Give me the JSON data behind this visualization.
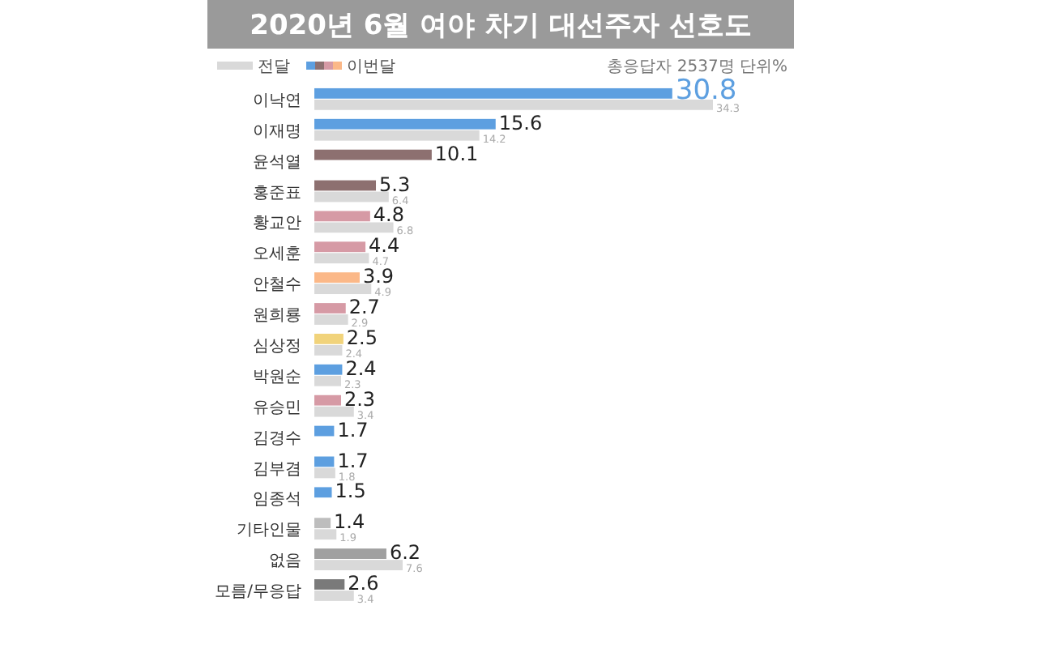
{
  "chart_data": {
    "type": "bar",
    "orientation": "horizontal",
    "title": "2020년 6월 여야 차기 대선주자 선호도",
    "annotations": [
      "총응답자 2537명 단위%"
    ],
    "categories": [
      "이낙연",
      "이재명",
      "윤석열",
      "홍준표",
      "황교안",
      "오세훈",
      "안철수",
      "원희룡",
      "심상정",
      "박원순",
      "유승민",
      "김경수",
      "김부겸",
      "임종석",
      "기타인물",
      "없음",
      "모름/무응답"
    ],
    "series": [
      {
        "name": "이번달",
        "colors": [
          "#5d9fe0",
          "#5d9fe0",
          "#8d7070",
          "#8d7070",
          "#d69aa5",
          "#d69aa5",
          "#fbb888",
          "#d69aa5",
          "#f1d37b",
          "#5d9fe0",
          "#d69aa5",
          "#5d9fe0",
          "#5d9fe0",
          "#5d9fe0",
          "#bdbdbd",
          "#a0a0a0",
          "#7a7a7a"
        ],
        "values": [
          30.8,
          15.6,
          10.1,
          5.3,
          4.8,
          4.4,
          3.9,
          2.7,
          2.5,
          2.4,
          2.3,
          1.7,
          1.7,
          1.5,
          1.4,
          6.2,
          2.6
        ]
      },
      {
        "name": "전달",
        "color": "#d9d9d9",
        "values": [
          34.3,
          14.2,
          null,
          6.4,
          6.8,
          4.7,
          4.9,
          2.9,
          2.4,
          2.3,
          3.4,
          null,
          1.8,
          null,
          1.9,
          7.6,
          3.4
        ]
      }
    ],
    "data_labels": true,
    "legend": "top left"
  }
}
